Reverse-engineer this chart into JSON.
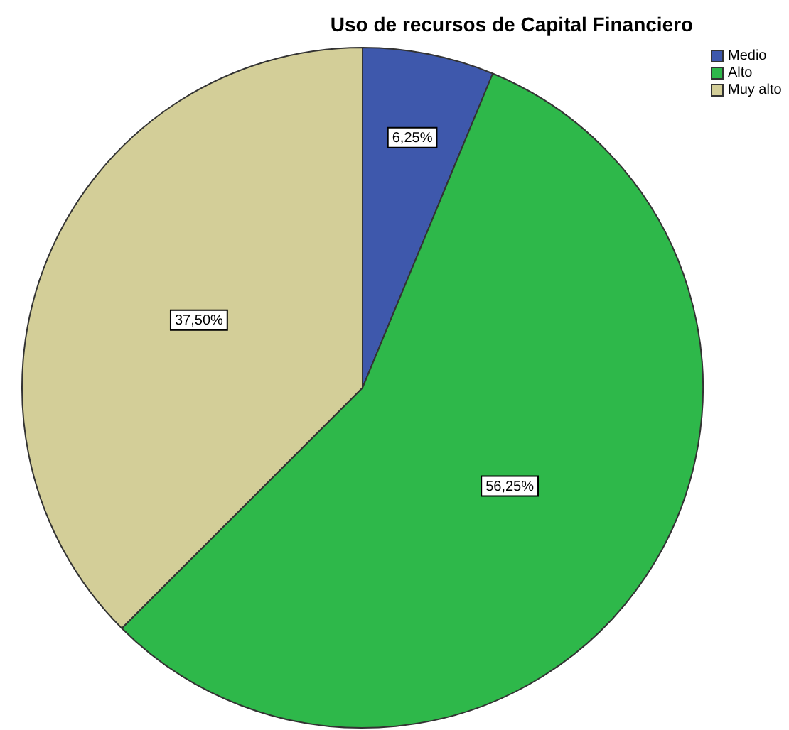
{
  "chart_data": {
    "type": "pie",
    "title": "Uso de recursos de Capital Financiero",
    "categories": [
      "Medio",
      "Alto",
      "Muy alto"
    ],
    "values": [
      6.25,
      56.25,
      37.5
    ],
    "colors": [
      "#3e58ac",
      "#2eb84a",
      "#d3ce98"
    ],
    "value_labels": [
      "6,25%",
      "56,25%",
      "37,50%"
    ],
    "legend": "top right"
  }
}
